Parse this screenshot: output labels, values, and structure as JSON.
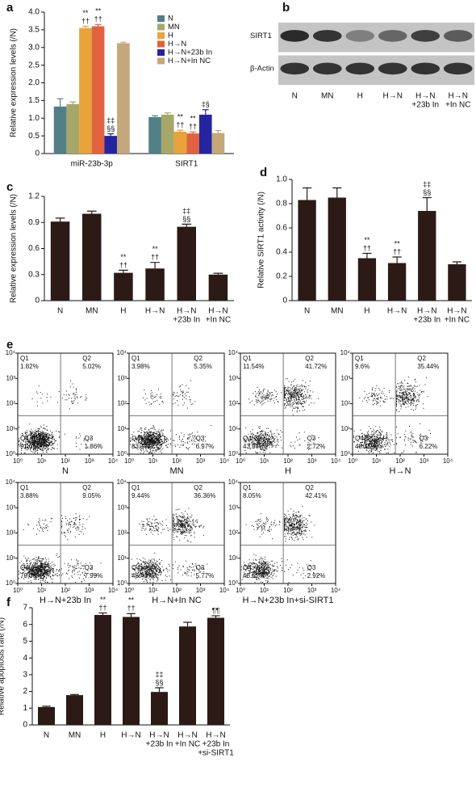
{
  "chart_data": [
    {
      "type": "bar",
      "panel": "a",
      "ylabel": "Relative expression levels (/N)",
      "categories": [
        "miR-23b-3p",
        "SIRT1"
      ],
      "series": [
        {
          "name": "N",
          "color": "#527f86",
          "values": [
            1.33,
            1.03
          ],
          "errors": [
            0.22,
            0.04
          ],
          "labels": [
            null,
            null
          ]
        },
        {
          "name": "MN",
          "color": "#a8a76a",
          "values": [
            1.4,
            1.1
          ],
          "errors": [
            0.06,
            0.05
          ],
          "labels": [
            null,
            null
          ]
        },
        {
          "name": "H",
          "color": "#e8a43a",
          "values": [
            3.55,
            0.62
          ],
          "errors": [
            0.05,
            0.04
          ],
          "labels": [
            [
              "**",
              "††"
            ],
            [
              "**",
              "††"
            ]
          ]
        },
        {
          "name": "H→N",
          "color": "#e0623f",
          "values": [
            3.6,
            0.57
          ],
          "errors": [
            0.05,
            0.04
          ],
          "labels": [
            [
              "**",
              "††"
            ],
            [
              "**",
              "††"
            ]
          ]
        },
        {
          "name": "H→N+23b In",
          "color": "#2424a0",
          "values": [
            0.5,
            1.1
          ],
          "errors": [
            0.06,
            0.14
          ],
          "labels": [
            [
              "‡‡",
              "§§"
            ],
            [
              "‡§"
            ]
          ]
        },
        {
          "name": "H→N+In NC",
          "color": "#c4a77a",
          "values": [
            3.12,
            0.58
          ],
          "errors": [
            0.03,
            0.07
          ],
          "labels": [
            null,
            null
          ]
        }
      ],
      "ylim": [
        0,
        4
      ],
      "yticks": [
        0,
        0.5,
        {
          "value": 1,
          "label": "1.0"
        },
        1.5,
        {
          "value": 2,
          "label": "2.0"
        },
        2.5,
        {
          "value": 3,
          "label": "3.0"
        },
        3.5,
        {
          "value": 4,
          "label": "4.0"
        }
      ]
    },
    {
      "type": "blot",
      "panel": "b",
      "rows": [
        "SIRT1",
        "β-Actin"
      ],
      "categories": [
        "N",
        "MN",
        "H",
        "H→N",
        [
          "H→N",
          "+23b In"
        ],
        [
          "H→N",
          "+In NC"
        ]
      ]
    },
    {
      "type": "bar",
      "panel": "c",
      "ylabel": "Relative expression levels (/N)",
      "color": "#2b1a16",
      "categories": [
        "N",
        "MN",
        "H",
        "H→N",
        [
          "H→N",
          "+23b In"
        ],
        [
          "H→N",
          "+In NC"
        ]
      ],
      "values": [
        0.91,
        1.0,
        0.32,
        0.37,
        0.85,
        0.3
      ],
      "errors": [
        0.04,
        0.03,
        0.03,
        0.07,
        0.03,
        0.015
      ],
      "labels": [
        null,
        null,
        [
          "**",
          "††"
        ],
        [
          "**",
          "††"
        ],
        [
          "‡‡",
          "§§"
        ],
        null
      ],
      "ylim": [
        0,
        1.2
      ],
      "yticks": [
        0,
        0.3,
        0.6,
        0.9,
        1.2
      ]
    },
    {
      "type": "bar",
      "panel": "d",
      "ylabel": "Relative SIRT1 activity (/N)",
      "color": "#2b1a16",
      "categories": [
        "N",
        "MN",
        "H",
        "H→N",
        [
          "H→N",
          "+23b In"
        ],
        [
          "H→N",
          "+In NC"
        ]
      ],
      "values": [
        0.83,
        0.85,
        0.35,
        0.31,
        0.74,
        0.3
      ],
      "errors": [
        0.1,
        0.08,
        0.04,
        0.05,
        0.11,
        0.02
      ],
      "labels": [
        null,
        null,
        [
          "**",
          "††"
        ],
        [
          "**",
          "††"
        ],
        [
          "‡‡",
          "§§"
        ],
        null
      ],
      "ylim": [
        0,
        1.0
      ],
      "yticks": [
        0,
        0.2,
        0.4,
        0.6,
        0.8,
        {
          "value": 1,
          "label": "1.0"
        }
      ]
    },
    {
      "type": "flow",
      "panel": "e",
      "log_scale": true,
      "xlim": [
        1,
        10000
      ],
      "ylim": [
        1,
        10000
      ],
      "xticks": [
        {
          "value": 1,
          "label": "10⁰"
        },
        {
          "value": 10,
          "label": "10¹"
        },
        {
          "value": 100,
          "label": "10²"
        },
        {
          "value": 1000,
          "label": "10³"
        },
        {
          "value": 10000,
          "label": "10⁴"
        }
      ],
      "yticks": [
        {
          "value": 1,
          "label": "10⁰"
        },
        {
          "value": 10,
          "label": "10¹"
        },
        {
          "value": 100,
          "label": "10²"
        },
        {
          "value": 1000,
          "label": "10³"
        },
        {
          "value": 10000,
          "label": "10⁴"
        }
      ],
      "plots": [
        {
          "title": "N",
          "categories": [
            "Q1",
            "Q2",
            "Q3",
            "Q4"
          ],
          "values": [
            1.82,
            5.02,
            1.86,
            91.3
          ],
          "value_labels": [
            "1.82%",
            "5.02%",
            "1.86%",
            "91.3%"
          ]
        },
        {
          "title": "MN",
          "categories": [
            "Q1",
            "Q2",
            "Q3",
            "Q4"
          ],
          "values": [
            3.98,
            5.35,
            6.97,
            83.7
          ],
          "value_labels": [
            "3.98%",
            "5.35%",
            "6.97%",
            "83.7%"
          ]
        },
        {
          "title": "H",
          "categories": [
            "Q1",
            "Q2",
            "Q3",
            "Q4"
          ],
          "values": [
            11.54,
            41.72,
            2.72,
            43.97
          ],
          "value_labels": [
            "11.54%",
            "41.72%",
            "2.72%",
            "43.97%"
          ]
        },
        {
          "title": "H→N",
          "categories": [
            "Q1",
            "Q2",
            "Q3",
            "Q4"
          ],
          "values": [
            9.6,
            35.44,
            6.22,
            48.75
          ],
          "value_labels": [
            "9.6%",
            "35.44%",
            "6.22%",
            "48.75%"
          ]
        },
        {
          "title": "H→N+23b In",
          "categories": [
            "Q1",
            "Q2",
            "Q3",
            "Q4"
          ],
          "values": [
            3.88,
            9.05,
            7.99,
            79.08
          ],
          "value_labels": [
            "3.88%",
            "9.05%",
            "7.99%",
            "79.08%"
          ]
        },
        {
          "title": "H→N+In NC",
          "categories": [
            "Q1",
            "Q2",
            "Q3",
            "Q4"
          ],
          "values": [
            9.44,
            36.36,
            5.77,
            48.43
          ],
          "value_labels": [
            "9.44%",
            "36.36%",
            "5.77%",
            "48.43%"
          ]
        },
        {
          "title": "H→N+23b In+si-SIRT1",
          "categories": [
            "Q1",
            "Q2",
            "Q3",
            "Q4"
          ],
          "values": [
            8.05,
            42.41,
            2.92,
            46.62
          ],
          "value_labels": [
            "8.05%",
            "42.41%",
            "2.92%",
            "46.62%"
          ]
        }
      ]
    },
    {
      "type": "bar",
      "panel": "f",
      "ylabel": "Relative apoptosis rate (/N)",
      "color": "#2b1a16",
      "categories": [
        "N",
        "MN",
        "H",
        "H→N",
        [
          "H→N",
          "+23b In"
        ],
        [
          "H→N",
          "+In NC"
        ],
        [
          "H→N",
          "+23b In",
          "+si-SIRT1"
        ]
      ],
      "values": [
        1.07,
        1.78,
        6.57,
        6.45,
        1.97,
        5.88,
        6.4
      ],
      "errors": [
        0.05,
        0.04,
        0.12,
        0.2,
        0.25,
        0.25,
        0.12
      ],
      "labels": [
        null,
        null,
        [
          "**",
          "††"
        ],
        [
          "**",
          "††"
        ],
        [
          "‡‡",
          "§§"
        ],
        null,
        [
          "¶¶"
        ]
      ],
      "ylim": [
        0,
        7
      ],
      "yticks": [
        0,
        1,
        2,
        3,
        4,
        5,
        6,
        7
      ]
    }
  ]
}
